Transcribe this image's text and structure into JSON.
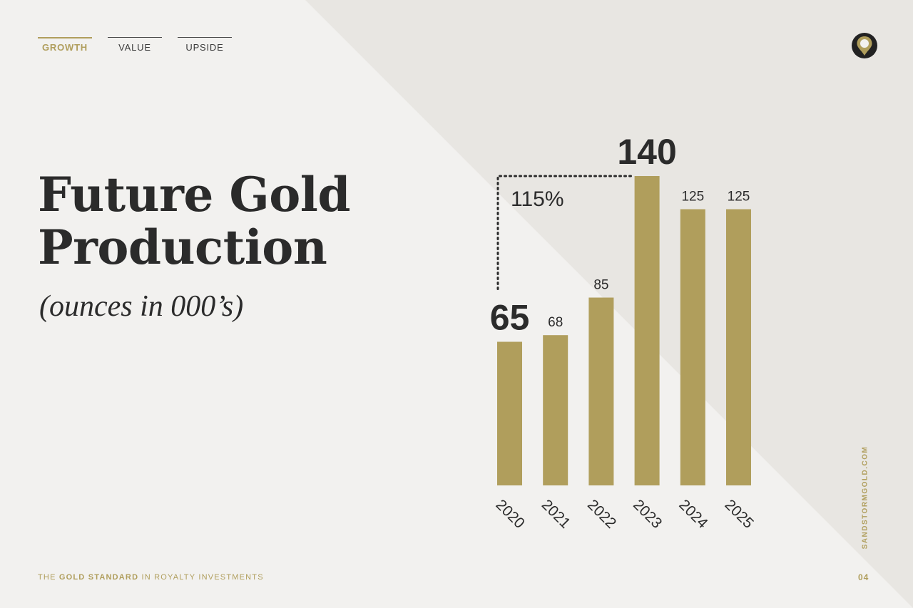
{
  "nav": {
    "tabs": [
      {
        "label": "GROWTH",
        "active": true
      },
      {
        "label": "VALUE",
        "active": false
      },
      {
        "label": "UPSIDE",
        "active": false
      }
    ]
  },
  "logo": {
    "icon": "sandstorm-drop-logo-icon"
  },
  "title": {
    "line1": "Future Gold",
    "line2": "Production"
  },
  "subtitle": "(ounces in 000’s)",
  "chart_data": {
    "type": "bar",
    "categories": [
      "2020",
      "2021",
      "2022",
      "2023",
      "2024",
      "2025"
    ],
    "values": [
      65,
      68,
      85,
      140,
      125,
      125
    ],
    "value_labels": [
      "65",
      "68",
      "85",
      "140",
      "125",
      "125"
    ],
    "highlight": [
      true,
      false,
      false,
      true,
      false,
      false
    ],
    "annotation": {
      "text": "115%",
      "from": "2020",
      "to": "2023"
    },
    "ylim": [
      0,
      140
    ],
    "grid": false,
    "bar_color": "#b09e5c"
  },
  "footer": {
    "tag_prefix": "THE",
    "tag_bold": "GOLD STANDARD",
    "tag_suffix": "IN ROYALTY INVESTMENTS",
    "page": "04"
  },
  "side_url": "SANDSTORMGOLD.COM",
  "colors": {
    "accent": "#b09e5c",
    "text": "#2b2b2b",
    "background": "#f2f1ef",
    "background_diagonal": "#e8e6e2"
  }
}
